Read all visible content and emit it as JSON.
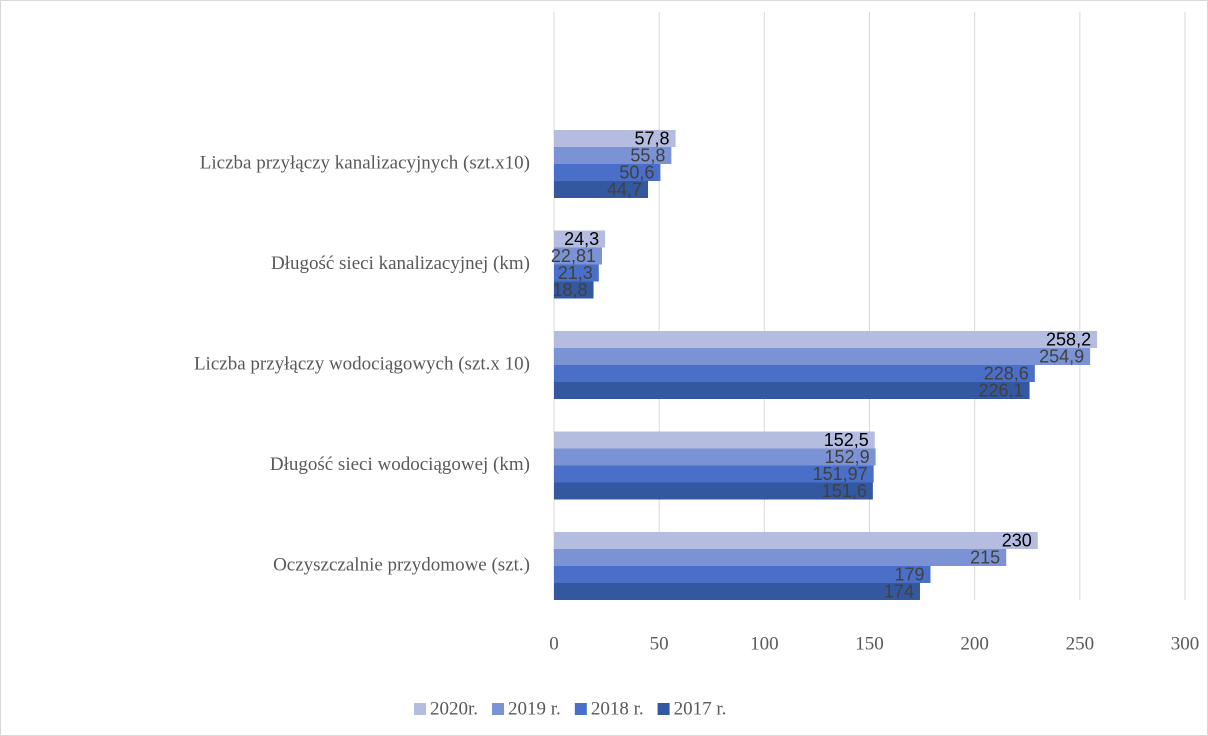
{
  "chart_data": {
    "type": "bar",
    "orientation": "horizontal",
    "categories": [
      "Oczyszczalnie przydomowe (szt.)",
      "Długość sieci wodociągowej (km)",
      "Liczba przyłączy wodociągowych (szt.x 10)",
      "Długość sieci kanalizacyjnej (km)",
      "Liczba przyłączy kanalizacyjnych (szt.x10)"
    ],
    "series": [
      {
        "name": "2020r.",
        "color": "#b4bde0",
        "values": [
          230,
          152.5,
          258.2,
          24.3,
          57.8
        ],
        "value_labels": [
          "230",
          "152,5",
          "258,2",
          "24,3",
          "57,8"
        ]
      },
      {
        "name": "2019 r.",
        "color": "#7b93d4",
        "values": [
          215,
          152.9,
          254.9,
          22.81,
          55.8
        ],
        "value_labels": [
          "215",
          "152,9",
          "254,9",
          "22,81",
          "55,8"
        ]
      },
      {
        "name": "2018 r.",
        "color": "#4a6fc8",
        "values": [
          179,
          151.97,
          228.6,
          21.3,
          50.6
        ],
        "value_labels": [
          "179",
          "151,97",
          "228,6",
          "21,3",
          "50,6"
        ]
      },
      {
        "name": "2017 r.",
        "color": "#3358a0",
        "values": [
          174,
          151.6,
          226.1,
          18.8,
          44.7
        ],
        "value_labels": [
          "174",
          "151,6",
          "226,1",
          "18,8",
          "44,7"
        ]
      }
    ],
    "xlim": [
      0,
      300
    ],
    "xticks": [
      0,
      50,
      100,
      150,
      200,
      250,
      300
    ],
    "grid": true,
    "legend": "bottom"
  }
}
